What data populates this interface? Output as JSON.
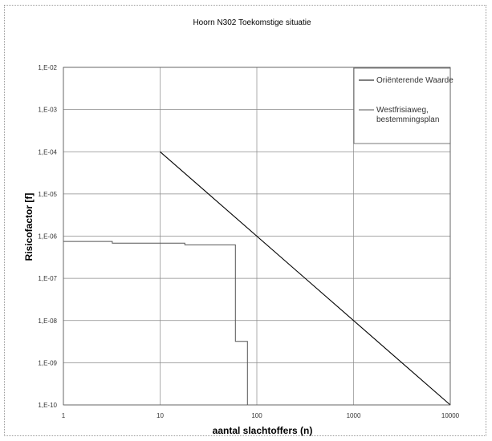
{
  "chart_data": {
    "type": "line",
    "title": "Hoorn N302 Toekomstige situatie",
    "xlabel": "aantal slachtoffers (n)",
    "ylabel": "Risicofactor [f]",
    "xscale": "log",
    "yscale": "log",
    "xlim": [
      1,
      10000
    ],
    "ylim": [
      1e-10,
      0.01
    ],
    "x_ticks": [
      {
        "value": 1,
        "label": "1"
      },
      {
        "value": 10,
        "label": "10"
      },
      {
        "value": 100,
        "label": "100"
      },
      {
        "value": 1000,
        "label": "1000"
      },
      {
        "value": 10000,
        "label": "10000"
      }
    ],
    "y_ticks": [
      {
        "value": 0.01,
        "label": "1,E-02"
      },
      {
        "value": 0.001,
        "label": "1,E-03"
      },
      {
        "value": 0.0001,
        "label": "1,E-04"
      },
      {
        "value": 1e-05,
        "label": "1,E-05"
      },
      {
        "value": 1e-06,
        "label": "1,E-06"
      },
      {
        "value": 1e-07,
        "label": "1,E-07"
      },
      {
        "value": 1e-08,
        "label": "1,E-08"
      },
      {
        "value": 1e-09,
        "label": "1,E-09"
      },
      {
        "value": 1e-10,
        "label": "1,E-10"
      }
    ],
    "grid": true,
    "legend_position": "top-right",
    "series": [
      {
        "name": "Oriënterende Waarde",
        "color": "#000000",
        "points": [
          [
            10,
            0.0001
          ],
          [
            10000,
            1e-10
          ]
        ]
      },
      {
        "name": "Westfrisiaweg, bestemmingsplan",
        "color": "#555555",
        "points": [
          [
            1,
            7.5e-07
          ],
          [
            3.2,
            7.5e-07
          ],
          [
            3.2,
            6.8e-07
          ],
          [
            18,
            6.8e-07
          ],
          [
            18,
            6.2e-07
          ],
          [
            60,
            6.2e-07
          ],
          [
            60,
            3.2e-09
          ],
          [
            80,
            3.2e-09
          ],
          [
            80,
            1e-10
          ]
        ]
      }
    ]
  }
}
